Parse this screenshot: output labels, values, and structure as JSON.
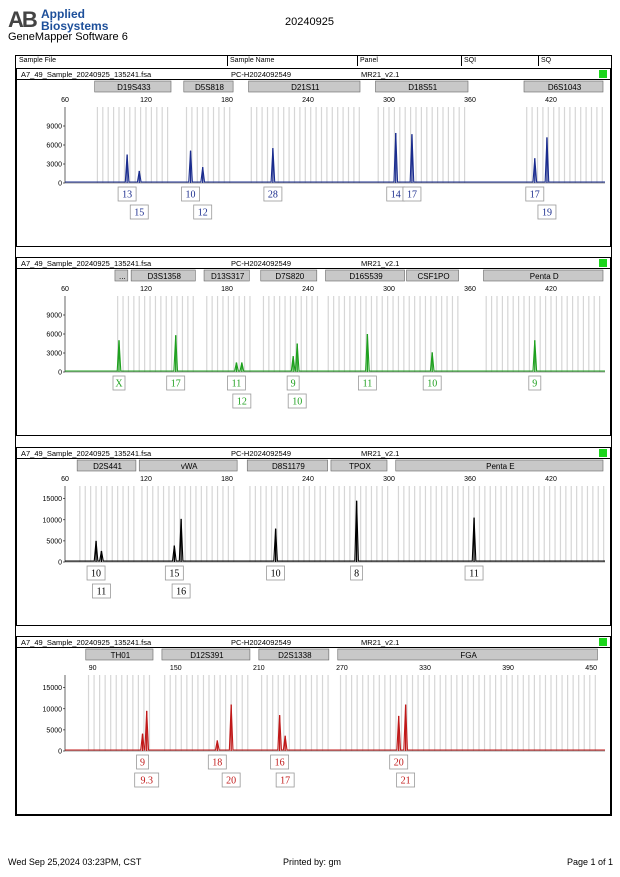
{
  "header": {
    "logo_mark": "AB",
    "brand_line1": "Applied",
    "brand_line2": "Biosystems",
    "software": "GeneMapper Software 6",
    "date": "20240925"
  },
  "columns": [
    "Sample File",
    "Sample Name",
    "Panel",
    "SQI",
    "SQ"
  ],
  "footer": {
    "timestamp": "Wed Sep 25,2024 03:23PM, CST",
    "printed_by": "Printed by: gm",
    "page": "Page 1 of 1"
  },
  "panels": [
    {
      "file": "A7_49_Sample_20240925_135241.fsa",
      "sample": "PC-H2024092549",
      "panel": "MR21_v2.1"
    },
    {
      "file": "A7_49_Sample_20240925_135241.fsa",
      "sample": "PC-H2024092549",
      "panel": "MR21_v2.1"
    },
    {
      "file": "A7_49_Sample_20240925_135241.fsa",
      "sample": "PC-H2024092549",
      "panel": "MR21_v2.1"
    },
    {
      "file": "A7_49_Sample_20240925_135241.fsa",
      "sample": "PC-H2024092549",
      "panel": "MR21_v2.1"
    }
  ],
  "colors": {
    "blue": "#1a2c8e",
    "green": "#1ea01e",
    "black": "#000000",
    "red": "#c01818",
    "bin": "#cfcfcf",
    "marker": "#c8c8c8",
    "status": "#1bd61b"
  },
  "chart_data": [
    {
      "type": "line",
      "dye": "blue",
      "color": "#1a2c8e",
      "xlim": [
        60,
        460
      ],
      "xticks": [
        60,
        120,
        180,
        240,
        300,
        360,
        420
      ],
      "ylim": [
        0,
        12000
      ],
      "yticks": [
        0,
        3000,
        6000,
        9000
      ],
      "markers": [
        {
          "name": "D19S433",
          "from": 82,
          "to": 140
        },
        {
          "name": "D5S818",
          "from": 148,
          "to": 186
        },
        {
          "name": "D21S11",
          "from": 196,
          "to": 280
        },
        {
          "name": "D18S51",
          "from": 290,
          "to": 360
        },
        {
          "name": "D6S1043",
          "from": 400,
          "to": 460
        }
      ],
      "peaks": [
        {
          "x": 106,
          "y": 4500,
          "label": "13",
          "row": 0
        },
        {
          "x": 115,
          "y": 1900,
          "label": "15",
          "row": 1
        },
        {
          "x": 153,
          "y": 5100,
          "label": "10",
          "row": 0
        },
        {
          "x": 162,
          "y": 2500,
          "label": "12",
          "row": 1
        },
        {
          "x": 214,
          "y": 5500,
          "label": "28",
          "row": 0
        },
        {
          "x": 305,
          "y": 7900,
          "label": "14",
          "row": 0
        },
        {
          "x": 317,
          "y": 7700,
          "label": "17",
          "row": 0
        },
        {
          "x": 408,
          "y": 3900,
          "label": "17",
          "row": 0
        },
        {
          "x": 417,
          "y": 7200,
          "label": "19",
          "row": 1
        }
      ]
    },
    {
      "type": "line",
      "dye": "green",
      "color": "#1ea01e",
      "xlim": [
        60,
        460
      ],
      "xticks": [
        60,
        120,
        180,
        240,
        300,
        360,
        420
      ],
      "ylim": [
        0,
        12000
      ],
      "yticks": [
        0,
        3000,
        6000,
        9000
      ],
      "markers": [
        {
          "name": "...",
          "from": 97,
          "to": 108
        },
        {
          "name": "D3S1358",
          "from": 109,
          "to": 158
        },
        {
          "name": "D13S317",
          "from": 163,
          "to": 198
        },
        {
          "name": "D7S820",
          "from": 205,
          "to": 248
        },
        {
          "name": "D16S539",
          "from": 253,
          "to": 313
        },
        {
          "name": "CSF1PO",
          "from": 313,
          "to": 353
        },
        {
          "name": "Penta D",
          "from": 370,
          "to": 460
        }
      ],
      "peaks": [
        {
          "x": 100,
          "y": 5000,
          "label": "X",
          "row": 0
        },
        {
          "x": 142,
          "y": 5800,
          "label": "17",
          "row": 0
        },
        {
          "x": 187,
          "y": 1500,
          "label": "11",
          "row": 0
        },
        {
          "x": 191,
          "y": 1500,
          "label": "12",
          "row": 1
        },
        {
          "x": 229,
          "y": 2500,
          "label": "9",
          "row": 0
        },
        {
          "x": 232,
          "y": 4500,
          "label": "10",
          "row": 1
        },
        {
          "x": 284,
          "y": 6000,
          "label": "11",
          "row": 0
        },
        {
          "x": 332,
          "y": 3100,
          "label": "10",
          "row": 0
        },
        {
          "x": 408,
          "y": 5000,
          "label": "9",
          "row": 0
        }
      ]
    },
    {
      "type": "line",
      "dye": "black",
      "color": "#000000",
      "xlim": [
        60,
        460
      ],
      "xticks": [
        60,
        120,
        180,
        240,
        300,
        360,
        420
      ],
      "ylim": [
        0,
        18000
      ],
      "yticks": [
        0,
        5000,
        10000,
        15000
      ],
      "markers": [
        {
          "name": "D2S441",
          "from": 69,
          "to": 114
        },
        {
          "name": "vWA",
          "from": 115,
          "to": 189
        },
        {
          "name": "D8S1179",
          "from": 195,
          "to": 256
        },
        {
          "name": "TPOX",
          "from": 257,
          "to": 300
        },
        {
          "name": "Penta E",
          "from": 305,
          "to": 460
        }
      ],
      "peaks": [
        {
          "x": 83,
          "y": 5000,
          "label": "10",
          "row": 0
        },
        {
          "x": 87,
          "y": 2600,
          "label": "11",
          "row": 1
        },
        {
          "x": 141,
          "y": 3900,
          "label": "15",
          "row": 0
        },
        {
          "x": 146,
          "y": 10200,
          "label": "16",
          "row": 1
        },
        {
          "x": 216,
          "y": 7900,
          "label": "10",
          "row": 0
        },
        {
          "x": 276,
          "y": 14500,
          "label": "8",
          "row": 0
        },
        {
          "x": 363,
          "y": 10500,
          "label": "11",
          "row": 0
        }
      ]
    },
    {
      "type": "line",
      "dye": "red",
      "color": "#c01818",
      "xlim": [
        70,
        460
      ],
      "xticks": [
        90,
        150,
        210,
        270,
        330,
        390,
        450
      ],
      "ylim": [
        0,
        18000
      ],
      "yticks": [
        0,
        5000,
        10000,
        15000
      ],
      "markers": [
        {
          "name": "TH01",
          "from": 85,
          "to": 135
        },
        {
          "name": "D12S391",
          "from": 140,
          "to": 205
        },
        {
          "name": "D2S1338",
          "from": 210,
          "to": 262
        },
        {
          "name": "FGA",
          "from": 267,
          "to": 456
        }
      ],
      "peaks": [
        {
          "x": 126,
          "y": 4100,
          "label": "9",
          "row": 0
        },
        {
          "x": 129,
          "y": 9500,
          "label": "9.3",
          "row": 1
        },
        {
          "x": 180,
          "y": 2500,
          "label": "18",
          "row": 0
        },
        {
          "x": 190,
          "y": 11000,
          "label": "20",
          "row": 1
        },
        {
          "x": 225,
          "y": 8500,
          "label": "16",
          "row": 0
        },
        {
          "x": 229,
          "y": 3600,
          "label": "17",
          "row": 1
        },
        {
          "x": 311,
          "y": 8300,
          "label": "20",
          "row": 0
        },
        {
          "x": 316,
          "y": 11000,
          "label": "21",
          "row": 1
        }
      ]
    }
  ]
}
